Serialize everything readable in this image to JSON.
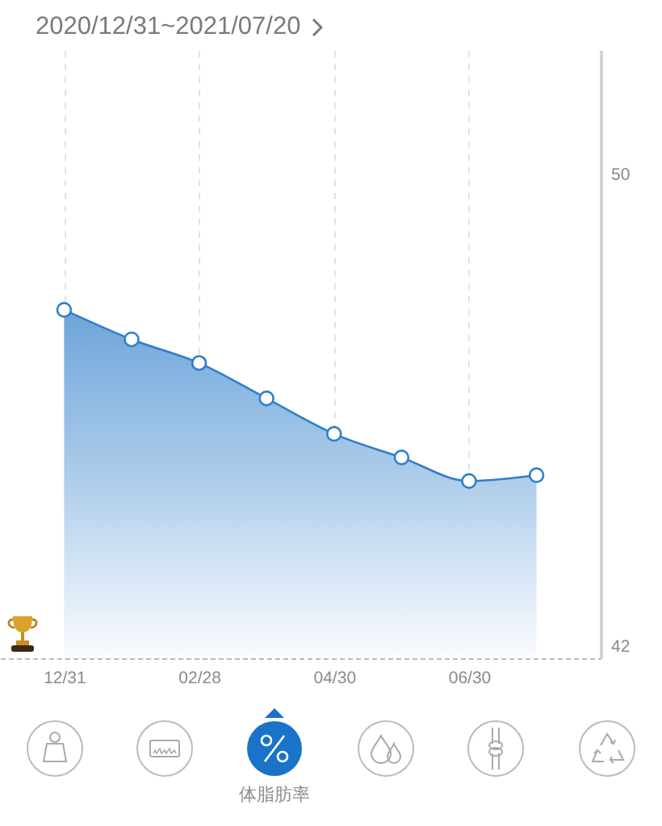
{
  "chart_data": {
    "type": "area",
    "title": "2020/12/31~2021/07/20",
    "categories": [
      "12/31",
      null,
      "02/28",
      null,
      "04/30",
      null,
      "06/30",
      null
    ],
    "series": [
      {
        "color": "#2e7fcb",
        "values": [
          47.7,
          47.2,
          46.8,
          46.2,
          45.6,
          45.2,
          44.8,
          44.9
        ]
      }
    ],
    "ylim": [
      41.8,
      52.1
    ],
    "yticks": [
      42,
      50
    ],
    "grid": "x",
    "marker": "circle",
    "annotations": [
      "体脂肪率"
    ]
  }
}
